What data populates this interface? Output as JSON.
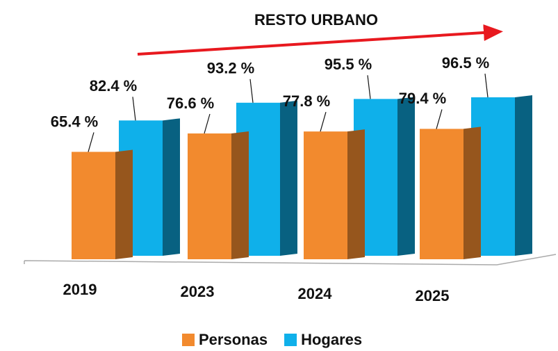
{
  "chart_data": {
    "type": "bar",
    "title": "RESTO URBANO",
    "categories": [
      "2019",
      "2023",
      "2024",
      "2025"
    ],
    "series": [
      {
        "name": "Personas",
        "color": "#f28a2e",
        "values": [
          65.4,
          76.6,
          77.8,
          79.4
        ],
        "value_labels": [
          "65.4 %",
          "76.6 %",
          "77.8 %",
          "79.4 %"
        ]
      },
      {
        "name": "Hogares",
        "color": "#0fb0ea",
        "values": [
          82.4,
          93.2,
          95.5,
          96.5
        ],
        "value_labels": [
          "82.4 %",
          "93.2 %",
          "95.5 %",
          "96.5 %"
        ]
      }
    ],
    "legend": "bottom"
  }
}
